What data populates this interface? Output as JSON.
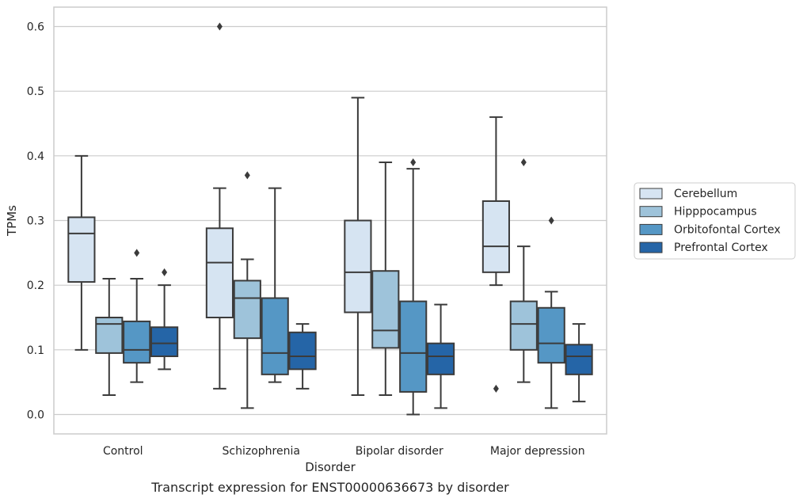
{
  "caption": "Transcript expression for ENST00000636673 by disorder",
  "chart_data": {
    "type": "box",
    "xlabel": "Disorder",
    "ylabel": "TPMs",
    "ylim": [
      -0.03,
      0.63
    ],
    "yticks": [
      0.0,
      0.1,
      0.2,
      0.3,
      0.4,
      0.5,
      0.6
    ],
    "ytick_labels": [
      "0.0",
      "0.1",
      "0.2",
      "0.3",
      "0.4",
      "0.5",
      "0.6"
    ],
    "grid": "horizontal",
    "legend_position": "right",
    "categories": [
      "Control",
      "Schizophrenia",
      "Bipolar disorder",
      "Major depression"
    ],
    "series": [
      {
        "name": "Cerebellum",
        "color": "#d6e4f2",
        "boxes": [
          {
            "whislo": 0.1,
            "q1": 0.205,
            "med": 0.28,
            "q3": 0.305,
            "whishi": 0.4,
            "fliers": []
          },
          {
            "whislo": 0.04,
            "q1": 0.15,
            "med": 0.235,
            "q3": 0.288,
            "whishi": 0.35,
            "fliers": [
              0.6
            ]
          },
          {
            "whislo": 0.03,
            "q1": 0.158,
            "med": 0.22,
            "q3": 0.3,
            "whishi": 0.49,
            "fliers": []
          },
          {
            "whislo": 0.2,
            "q1": 0.22,
            "med": 0.26,
            "q3": 0.33,
            "whishi": 0.46,
            "fliers": [
              0.04
            ]
          }
        ]
      },
      {
        "name": "Hipppocampus",
        "color": "#9ec3da",
        "boxes": [
          {
            "whislo": 0.03,
            "q1": 0.095,
            "med": 0.14,
            "q3": 0.15,
            "whishi": 0.21,
            "fliers": []
          },
          {
            "whislo": 0.01,
            "q1": 0.118,
            "med": 0.18,
            "q3": 0.207,
            "whishi": 0.24,
            "fliers": [
              0.37
            ]
          },
          {
            "whislo": 0.03,
            "q1": 0.103,
            "med": 0.13,
            "q3": 0.222,
            "whishi": 0.39,
            "fliers": []
          },
          {
            "whislo": 0.05,
            "q1": 0.1,
            "med": 0.14,
            "q3": 0.175,
            "whishi": 0.26,
            "fliers": [
              0.39
            ]
          }
        ]
      },
      {
        "name": "Orbitofontal Cortex",
        "color": "#5597c5",
        "boxes": [
          {
            "whislo": 0.05,
            "q1": 0.08,
            "med": 0.1,
            "q3": 0.144,
            "whishi": 0.21,
            "fliers": [
              0.25
            ]
          },
          {
            "whislo": 0.05,
            "q1": 0.062,
            "med": 0.095,
            "q3": 0.18,
            "whishi": 0.35,
            "fliers": []
          },
          {
            "whislo": 0.0,
            "q1": 0.035,
            "med": 0.095,
            "q3": 0.175,
            "whishi": 0.38,
            "fliers": [
              0.39
            ]
          },
          {
            "whislo": 0.01,
            "q1": 0.08,
            "med": 0.11,
            "q3": 0.165,
            "whishi": 0.19,
            "fliers": [
              0.3
            ]
          }
        ]
      },
      {
        "name": "Prefrontal Cortex",
        "color": "#2565a7",
        "boxes": [
          {
            "whislo": 0.07,
            "q1": 0.09,
            "med": 0.11,
            "q3": 0.135,
            "whishi": 0.2,
            "fliers": [
              0.22
            ]
          },
          {
            "whislo": 0.04,
            "q1": 0.07,
            "med": 0.09,
            "q3": 0.127,
            "whishi": 0.14,
            "fliers": []
          },
          {
            "whislo": 0.01,
            "q1": 0.062,
            "med": 0.09,
            "q3": 0.11,
            "whishi": 0.17,
            "fliers": []
          },
          {
            "whislo": 0.02,
            "q1": 0.062,
            "med": 0.09,
            "q3": 0.108,
            "whishi": 0.14,
            "fliers": []
          }
        ]
      }
    ]
  }
}
